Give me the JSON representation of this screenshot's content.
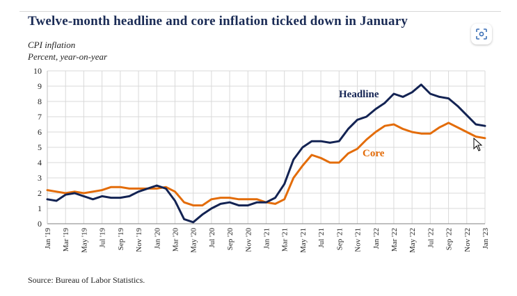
{
  "title": "Twelve-month headline and core inflation ticked down in January",
  "subtitle_line1": "CPI inflation",
  "subtitle_line2": "Percent, year-on-year",
  "source": "Source: Bureau of Labor Statistics.",
  "colors": {
    "headline": "#132353",
    "core": "#e36c09",
    "title": "#1a2b55",
    "grid": "#d9d9d9"
  },
  "icons": {
    "lens_button": "image-search-icon",
    "cursor": "mouse-pointer-icon"
  },
  "chart_data": {
    "type": "line",
    "title": "Twelve-month headline and core inflation ticked down in January",
    "ylabel": "Percent, year-on-year",
    "ylim": [
      0,
      10
    ],
    "yticks": [
      0,
      1,
      2,
      3,
      4,
      5,
      6,
      7,
      8,
      9,
      10
    ],
    "grid": true,
    "legend": "inline labels",
    "x": [
      "Jan '19",
      "Feb '19",
      "Mar '19",
      "Apr '19",
      "May '19",
      "Jun '19",
      "Jul '19",
      "Aug '19",
      "Sep '19",
      "Oct '19",
      "Nov '19",
      "Dec '19",
      "Jan '20",
      "Feb '20",
      "Mar '20",
      "Apr '20",
      "May '20",
      "Jun '20",
      "Jul '20",
      "Aug '20",
      "Sep '20",
      "Oct '20",
      "Nov '20",
      "Dec '20",
      "Jan '21",
      "Feb '21",
      "Mar '21",
      "Apr '21",
      "May '21",
      "Jun '21",
      "Jul '21",
      "Aug '21",
      "Sep '21",
      "Oct '21",
      "Nov '21",
      "Dec '21",
      "Jan '22",
      "Feb '22",
      "Mar '22",
      "Apr '22",
      "May '22",
      "Jun '22",
      "Jul '22",
      "Aug '22",
      "Sep '22",
      "Oct '22",
      "Nov '22",
      "Dec '22",
      "Jan '23"
    ],
    "xticks": [
      "Jan '19",
      "Mar '19",
      "May '19",
      "Jul '19",
      "Sep '19",
      "Nov '19",
      "Jan '20",
      "Mar '20",
      "May '20",
      "Jul '20",
      "Sep '20",
      "Nov '20",
      "Jan '21",
      "Mar '21",
      "May '21",
      "Jul '21",
      "Sep '21",
      "Nov '21",
      "Jan '22",
      "Mar '22",
      "May '22",
      "Jul '22",
      "Sep '22",
      "Nov '22",
      "Jan '23"
    ],
    "series": [
      {
        "name": "Headline",
        "values": [
          1.6,
          1.5,
          1.9,
          2.0,
          1.8,
          1.6,
          1.8,
          1.7,
          1.7,
          1.8,
          2.1,
          2.3,
          2.5,
          2.3,
          1.5,
          0.3,
          0.1,
          0.6,
          1.0,
          1.3,
          1.4,
          1.2,
          1.2,
          1.4,
          1.4,
          1.7,
          2.6,
          4.2,
          5.0,
          5.4,
          5.4,
          5.3,
          5.4,
          6.2,
          6.8,
          7.0,
          7.5,
          7.9,
          8.5,
          8.3,
          8.6,
          9.1,
          8.5,
          8.3,
          8.2,
          7.7,
          7.1,
          6.5,
          6.4
        ]
      },
      {
        "name": "Core",
        "values": [
          2.2,
          2.1,
          2.0,
          2.1,
          2.0,
          2.1,
          2.2,
          2.4,
          2.4,
          2.3,
          2.3,
          2.3,
          2.3,
          2.4,
          2.1,
          1.4,
          1.2,
          1.2,
          1.6,
          1.7,
          1.7,
          1.6,
          1.6,
          1.6,
          1.4,
          1.3,
          1.6,
          3.0,
          3.8,
          4.5,
          4.3,
          4.0,
          4.0,
          4.6,
          4.9,
          5.5,
          6.0,
          6.4,
          6.5,
          6.2,
          6.0,
          5.9,
          5.9,
          6.3,
          6.6,
          6.3,
          6.0,
          5.7,
          5.6
        ]
      }
    ]
  }
}
